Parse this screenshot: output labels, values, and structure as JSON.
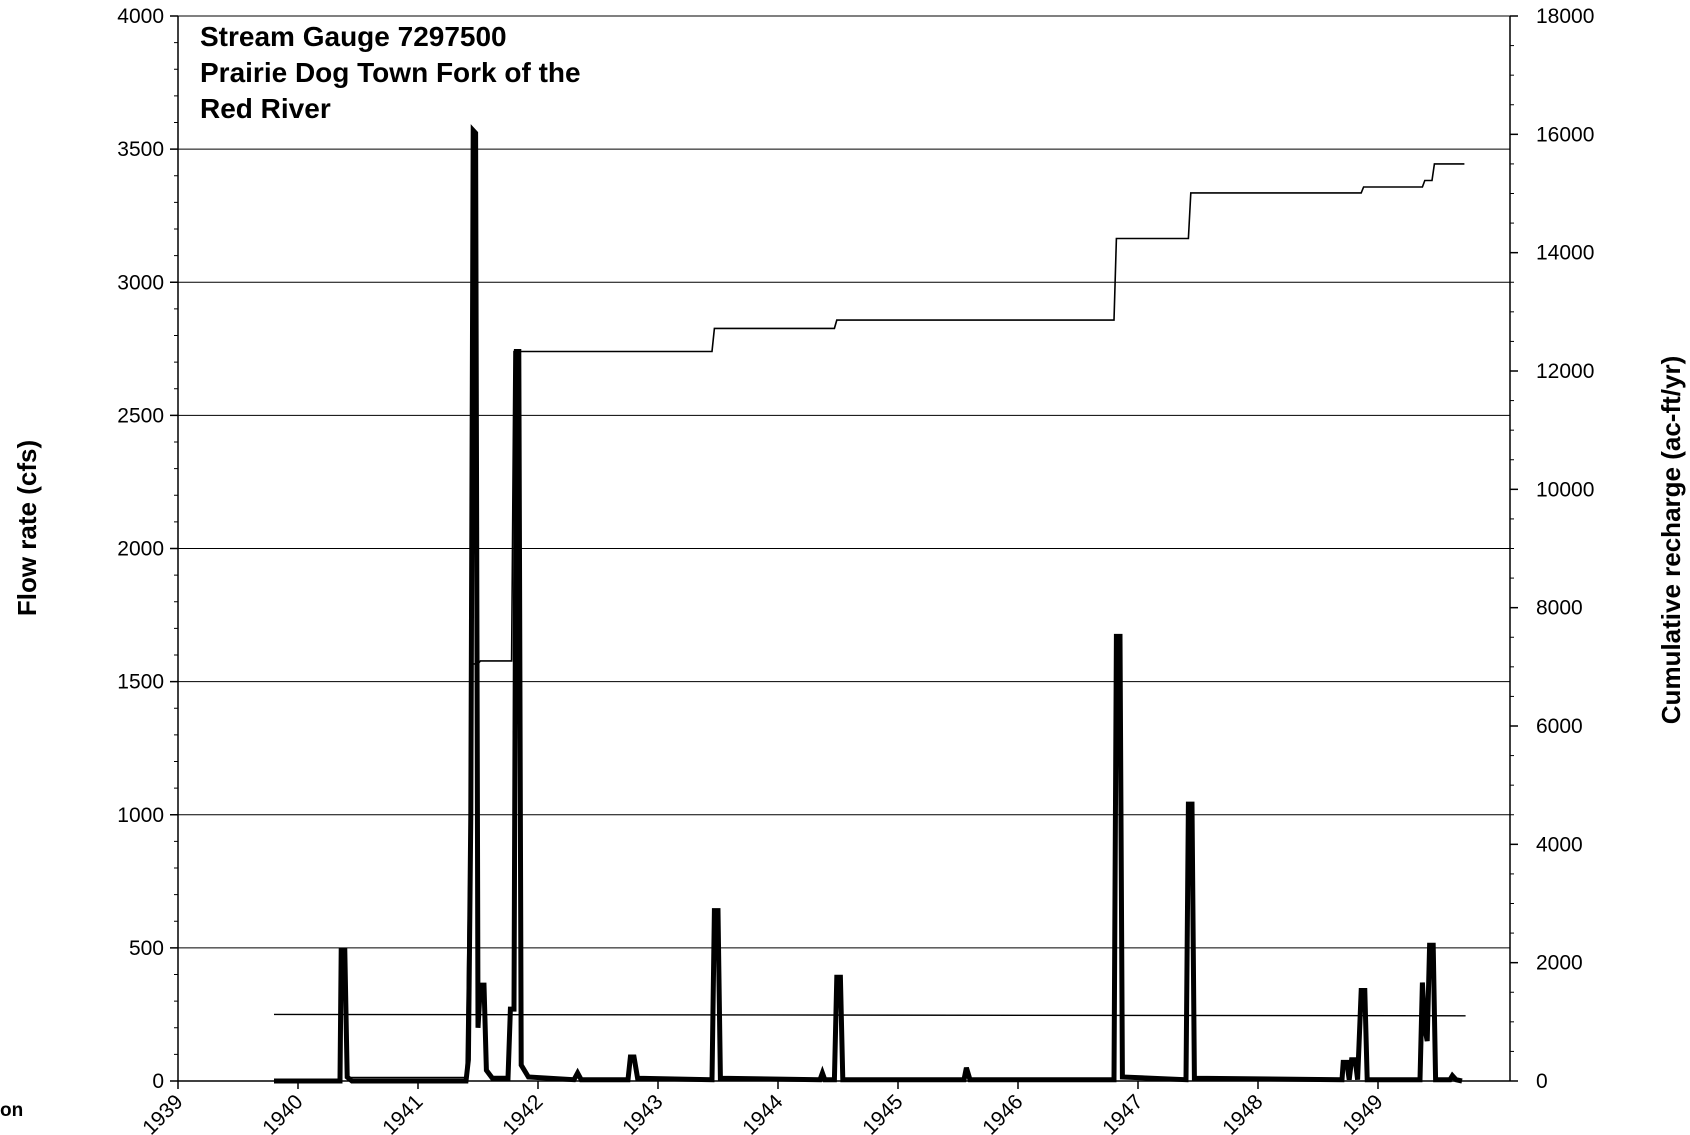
{
  "chart_data": {
    "type": "line",
    "title_lines": [
      "Stream Gauge 7297500",
      "Prairie Dog Town Fork of the",
      "Red River"
    ],
    "ylabel": "Flow rate (cfs)",
    "y2label": "Cumulative recharge (ac-ft/yr)",
    "xlabel": "",
    "xlim": [
      1939,
      1950.1
    ],
    "ylim": [
      0,
      4000
    ],
    "y2lim": [
      0,
      18000
    ],
    "x_ticks": [
      "1939",
      "1940",
      "1941",
      "1942",
      "1943",
      "1944",
      "1945",
      "1946",
      "1947",
      "1948",
      "1949"
    ],
    "y_ticks": [
      "0",
      "500",
      "1000",
      "1500",
      "2000",
      "2500",
      "3000",
      "3500",
      "4000"
    ],
    "y2_ticks": [
      "0",
      "2000",
      "4000",
      "6000",
      "8000",
      "10000",
      "12000",
      "14000",
      "16000",
      "18000"
    ],
    "grid": "horizontal",
    "legend": "none",
    "series": [
      {
        "axis": "left",
        "color": "#000000",
        "points": [
          [
            1939.8,
            0
          ],
          [
            1940.35,
            0
          ],
          [
            1940.36,
            490
          ],
          [
            1940.39,
            490
          ],
          [
            1940.41,
            15
          ],
          [
            1940.45,
            0
          ],
          [
            1941.4,
            0
          ],
          [
            1941.42,
            80
          ],
          [
            1941.44,
            1000
          ],
          [
            1941.46,
            3570
          ],
          [
            1941.48,
            3560
          ],
          [
            1941.5,
            200
          ],
          [
            1941.52,
            360
          ],
          [
            1941.55,
            360
          ],
          [
            1941.57,
            40
          ],
          [
            1941.62,
            10
          ],
          [
            1941.75,
            10
          ],
          [
            1941.77,
            270
          ],
          [
            1941.8,
            270
          ],
          [
            1941.82,
            2740
          ],
          [
            1941.84,
            2740
          ],
          [
            1941.86,
            60
          ],
          [
            1941.92,
            15
          ],
          [
            1942.3,
            5
          ],
          [
            1942.33,
            30
          ],
          [
            1942.36,
            5
          ],
          [
            1942.75,
            5
          ],
          [
            1942.77,
            90
          ],
          [
            1942.8,
            90
          ],
          [
            1942.83,
            10
          ],
          [
            1943.45,
            5
          ],
          [
            1943.47,
            640
          ],
          [
            1943.5,
            640
          ],
          [
            1943.52,
            10
          ],
          [
            1944.35,
            5
          ],
          [
            1944.37,
            30
          ],
          [
            1944.39,
            5
          ],
          [
            1944.47,
            5
          ],
          [
            1944.49,
            390
          ],
          [
            1944.52,
            390
          ],
          [
            1944.54,
            5
          ],
          [
            1945.55,
            5
          ],
          [
            1945.57,
            50
          ],
          [
            1945.6,
            5
          ],
          [
            1946.8,
            5
          ],
          [
            1946.82,
            1670
          ],
          [
            1946.85,
            1670
          ],
          [
            1946.87,
            15
          ],
          [
            1947.4,
            5
          ],
          [
            1947.42,
            1040
          ],
          [
            1947.45,
            1040
          ],
          [
            1947.47,
            10
          ],
          [
            1948.7,
            5
          ],
          [
            1948.71,
            70
          ],
          [
            1948.74,
            70
          ],
          [
            1948.76,
            5
          ],
          [
            1948.78,
            80
          ],
          [
            1948.81,
            80
          ],
          [
            1948.83,
            5
          ],
          [
            1948.86,
            340
          ],
          [
            1948.89,
            340
          ],
          [
            1948.91,
            5
          ],
          [
            1949.35,
            5
          ],
          [
            1949.37,
            370
          ],
          [
            1949.39,
            200
          ],
          [
            1949.41,
            150
          ],
          [
            1949.43,
            510
          ],
          [
            1949.46,
            510
          ],
          [
            1949.48,
            5
          ],
          [
            1949.6,
            5
          ],
          [
            1949.62,
            20
          ],
          [
            1949.65,
            5
          ],
          [
            1949.7,
            0
          ]
        ]
      },
      {
        "axis": "right",
        "color": "#000000",
        "points": [
          [
            1940.4,
            60
          ],
          [
            1941.4,
            60
          ],
          [
            1941.45,
            7050
          ],
          [
            1941.5,
            7050
          ],
          [
            1941.52,
            7100
          ],
          [
            1941.78,
            7100
          ],
          [
            1941.8,
            12330
          ],
          [
            1943.45,
            12330
          ],
          [
            1943.47,
            12720
          ],
          [
            1944.47,
            12720
          ],
          [
            1944.49,
            12860
          ],
          [
            1946.8,
            12860
          ],
          [
            1946.82,
            14240
          ],
          [
            1947.42,
            14240
          ],
          [
            1947.44,
            15010
          ],
          [
            1948.86,
            15010
          ],
          [
            1948.88,
            15110
          ],
          [
            1949.37,
            15110
          ],
          [
            1949.39,
            15220
          ],
          [
            1949.45,
            15220
          ],
          [
            1949.47,
            15500
          ],
          [
            1949.72,
            15500
          ]
        ]
      },
      {
        "axis": "left",
        "color": "#000000",
        "points": [
          [
            1939.8,
            250
          ],
          [
            1949.73,
            245
          ]
        ]
      }
    ]
  },
  "stray_text": "on"
}
